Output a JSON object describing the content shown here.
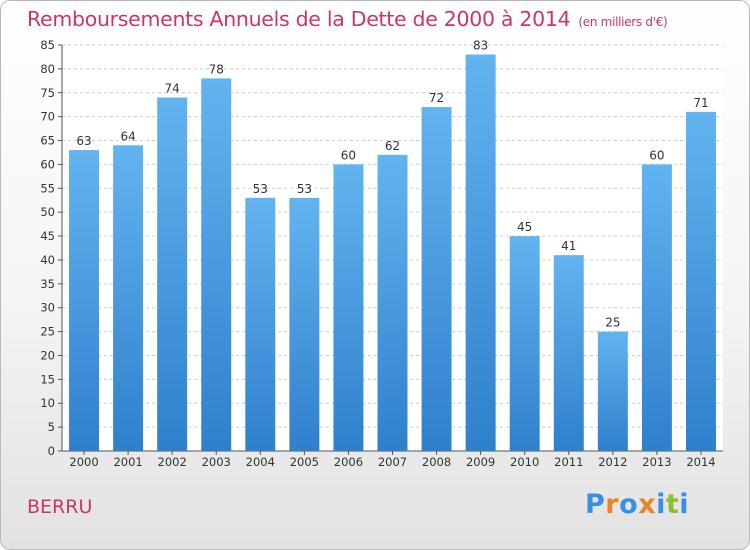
{
  "title": "Remboursements Annuels de la Dette de 2000 à 2014",
  "unit": "(en milliers d'€)",
  "city": "BERRU",
  "logo": {
    "letters": [
      "P",
      "r",
      "o",
      "x",
      "i",
      "t",
      "i"
    ],
    "colors": [
      "#3a8ee6",
      "#e8842c",
      "#3a8ee6",
      "#e8842c",
      "#3a8ee6",
      "#8bbf2d",
      "#3a8ee6"
    ]
  },
  "colors": {
    "bar_light": "#62b4f0",
    "bar_dark": "#2f80cc",
    "title": "#c8366a",
    "grid": "#cccccc"
  },
  "chart_data": {
    "type": "bar",
    "title": "Remboursements Annuels de la Dette de 2000 à 2014",
    "categories": [
      "2000",
      "2001",
      "2002",
      "2003",
      "2004",
      "2005",
      "2006",
      "2007",
      "2008",
      "2009",
      "2010",
      "2011",
      "2012",
      "2013",
      "2014"
    ],
    "values": [
      63,
      64,
      74,
      78,
      53,
      53,
      60,
      62,
      72,
      83,
      45,
      41,
      25,
      60,
      71
    ],
    "xlabel": "",
    "ylabel": "",
    "ylim": [
      0,
      85
    ],
    "yticks": [
      0,
      5,
      10,
      15,
      20,
      25,
      30,
      35,
      40,
      45,
      50,
      55,
      60,
      65,
      70,
      75,
      80,
      85
    ],
    "grid": true,
    "data_labels": true
  }
}
